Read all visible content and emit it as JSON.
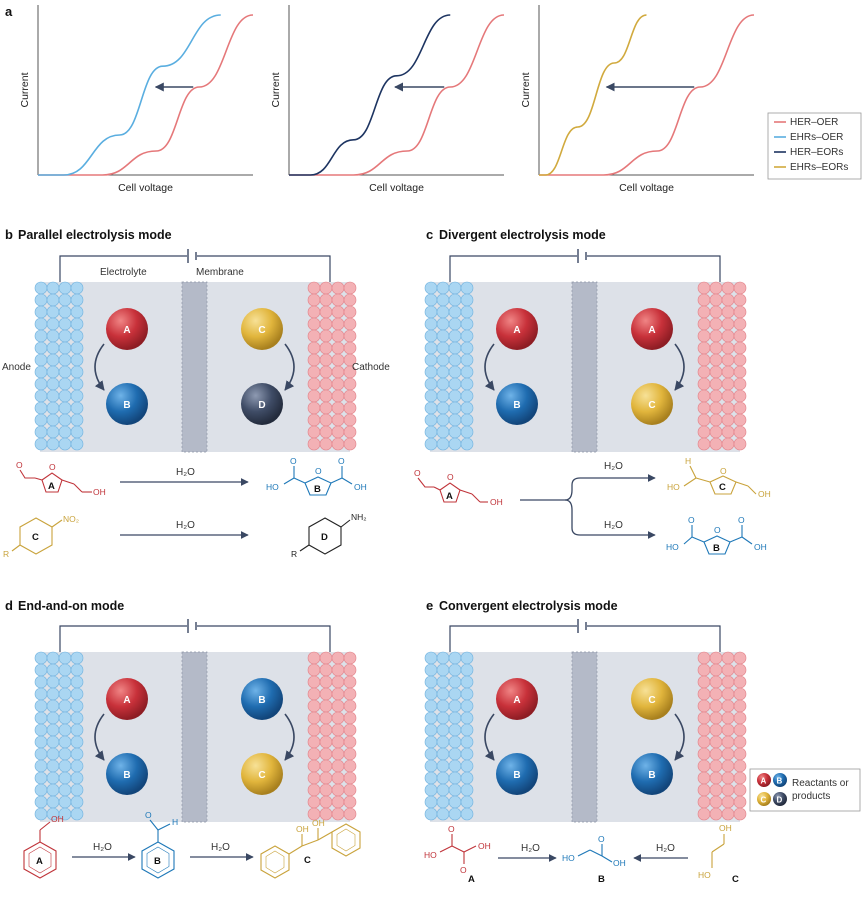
{
  "panel_a": {
    "letter": "a",
    "xlabel": "Cell voltage",
    "ylabel": "Current",
    "legend": [
      {
        "label": "HER–OER",
        "color": "#e5787a"
      },
      {
        "label": "EHRs–OER",
        "color": "#5aaee0"
      },
      {
        "label": "HER–EORs",
        "color": "#1d3461"
      },
      {
        "label": "EHRs–EORs",
        "color": "#d1aa3e"
      }
    ]
  },
  "chart_data": [
    {
      "type": "line",
      "title": "",
      "xlabel": "Cell voltage",
      "ylabel": "Current",
      "series": [
        {
          "name": "HER–OER",
          "x": [
            0,
            0.3,
            0.55,
            0.75,
            1.0
          ],
          "y": [
            0,
            0,
            0.15,
            0.55,
            1.0
          ]
        },
        {
          "name": "EHRs–OER",
          "x": [
            0,
            0.12,
            0.38,
            0.58,
            0.85
          ],
          "y": [
            0,
            0,
            0.25,
            0.68,
            1.0
          ]
        }
      ]
    },
    {
      "type": "line",
      "title": "",
      "xlabel": "Cell voltage",
      "ylabel": "Current",
      "series": [
        {
          "name": "HER–OER",
          "x": [
            0,
            0.3,
            0.55,
            0.75,
            1.0
          ],
          "y": [
            0,
            0,
            0.15,
            0.55,
            1.0
          ]
        },
        {
          "name": "HER–EORs",
          "x": [
            0,
            0.1,
            0.3,
            0.5,
            0.75
          ],
          "y": [
            0,
            0,
            0.22,
            0.62,
            1.0
          ]
        }
      ]
    },
    {
      "type": "line",
      "title": "",
      "xlabel": "Cell voltage",
      "ylabel": "Current",
      "series": [
        {
          "name": "HER–OER",
          "x": [
            0,
            0.3,
            0.55,
            0.75,
            1.0
          ],
          "y": [
            0,
            0,
            0.15,
            0.55,
            1.0
          ]
        },
        {
          "name": "EHRs–EORs",
          "x": [
            0,
            0.03,
            0.18,
            0.35,
            0.5
          ],
          "y": [
            0,
            0,
            0.3,
            0.7,
            1.0
          ]
        }
      ]
    }
  ],
  "panel_b": {
    "letter": "b",
    "title": "Parallel electrolysis mode",
    "electrolyte": "Electrolyte",
    "membrane": "Membrane",
    "anode": "Anode",
    "cathode": "Cathode",
    "left": {
      "top": "A",
      "bottom": "B"
    },
    "right": {
      "top": "C",
      "bottom": "D"
    },
    "reactions": [
      {
        "reactant_label": "A",
        "reactant_oh": "OH",
        "product_label": "B",
        "product_oh1": "HO",
        "product_oh2": "OH",
        "reagent": "H₂O"
      },
      {
        "reactant_label": "C",
        "reactant_sub": "NO₂",
        "reactant_r": "R",
        "product_label": "D",
        "product_sub": "NH₂",
        "product_r": "R",
        "reagent": "H₂O"
      }
    ]
  },
  "panel_c": {
    "letter": "c",
    "title": "Divergent electrolysis mode",
    "left": {
      "top": "A",
      "bottom": "B"
    },
    "right": {
      "top": "A",
      "bottom": "C"
    },
    "reactant": {
      "label": "A",
      "oh": "OH"
    },
    "upper": {
      "reagent": "H₂O",
      "label": "C",
      "h": "H",
      "ho": "HO",
      "oh": "OH"
    },
    "lower": {
      "reagent": "H₂O",
      "label": "B",
      "ho": "HO",
      "oh": "OH"
    }
  },
  "panel_d": {
    "letter": "d",
    "title": "End-and-on mode",
    "left": {
      "top": "A",
      "bottom": "B"
    },
    "right": {
      "top": "B",
      "bottom": "C"
    },
    "chem": {
      "a_label": "A",
      "a_oh": "OH",
      "b_label": "B",
      "b_h": "H",
      "c_label": "C",
      "c_oh1": "OH",
      "c_oh2": "OH",
      "reagent1": "H₂O",
      "reagent2": "H₂O"
    }
  },
  "panel_e": {
    "letter": "e",
    "title": "Convergent electrolysis mode",
    "left": {
      "top": "A",
      "bottom": "B"
    },
    "right": {
      "top": "C",
      "bottom": "B"
    },
    "chem": {
      "a_label": "A",
      "a_ho": "HO",
      "a_oh": "OH",
      "b_label": "B",
      "b_ho": "HO",
      "b_oh": "OH",
      "c_label": "C",
      "c_ho": "HO",
      "c_oh": "OH",
      "reagent1": "H₂O",
      "reagent2": "H₂O"
    }
  },
  "legend2": {
    "line1": "Reactants or",
    "line2": "products",
    "balls": [
      "A",
      "B",
      "C",
      "D"
    ]
  },
  "colors": {
    "red": "#c8313a",
    "blue": "#1f6cb0",
    "yellow": "#e1b53c",
    "navy": "#3f4c66",
    "cellbg": "#dde1e8",
    "membrane": "#b4bac8",
    "electrode_blue": "#aad6f2",
    "electrode_red": "#f3b1b5",
    "arrow": "#3a4863",
    "chem_red": "#c0343a",
    "chem_blue": "#1e78b8",
    "chem_yellow": "#c9a33c",
    "chem_dark": "#222222"
  }
}
